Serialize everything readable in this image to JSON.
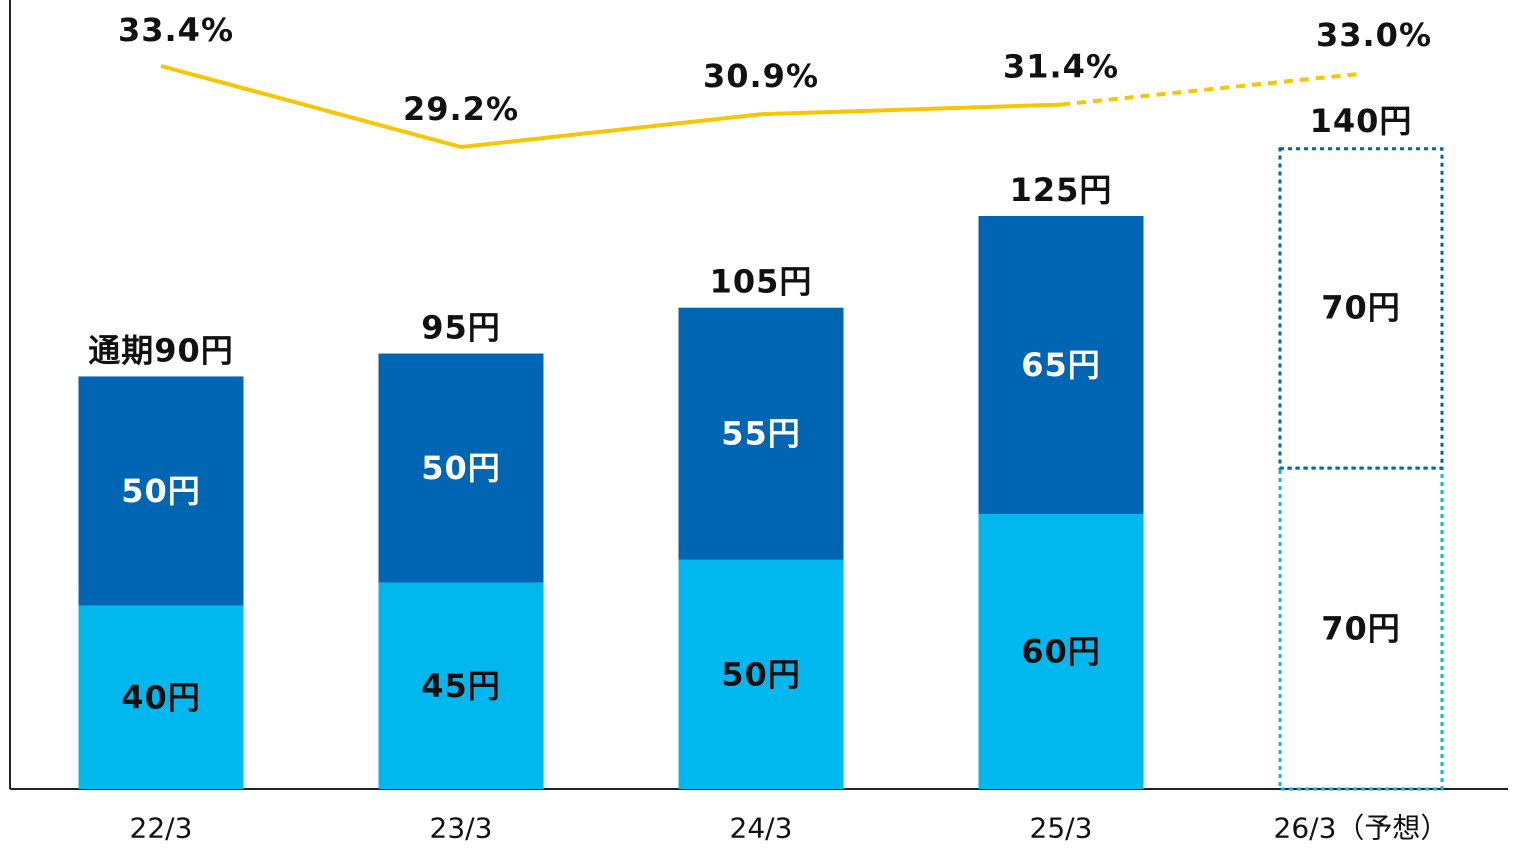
{
  "chart_data": {
    "type": "bar",
    "stacked": true,
    "categories": [
      "22/3",
      "23/3",
      "24/3",
      "25/3",
      "26/3（予想）"
    ],
    "forecast_index": 4,
    "series": [
      {
        "values": [
          40,
          45,
          50,
          60,
          70
        ],
        "labels": [
          "40円",
          "45円",
          "50円",
          "60円",
          "70円"
        ],
        "color": "#00b7ee"
      },
      {
        "values": [
          50,
          50,
          55,
          65,
          70
        ],
        "labels": [
          "50円",
          "50円",
          "55円",
          "65円",
          "70円"
        ],
        "color": "#0066b3"
      }
    ],
    "totals": [
      90,
      95,
      105,
      125,
      140
    ],
    "total_labels": [
      "通期90円",
      "95円",
      "105円",
      "125円",
      "140円"
    ],
    "payout_ratio": {
      "values": [
        33.4,
        29.2,
        30.9,
        31.4,
        33.0
      ],
      "labels": [
        "33.4%",
        "29.2%",
        "30.9%",
        "31.4%",
        "33.0%"
      ],
      "color": "#f7c600",
      "forecast_dashed": true
    },
    "ylim": [
      0,
      165
    ],
    "grid": false,
    "legend": "none"
  }
}
